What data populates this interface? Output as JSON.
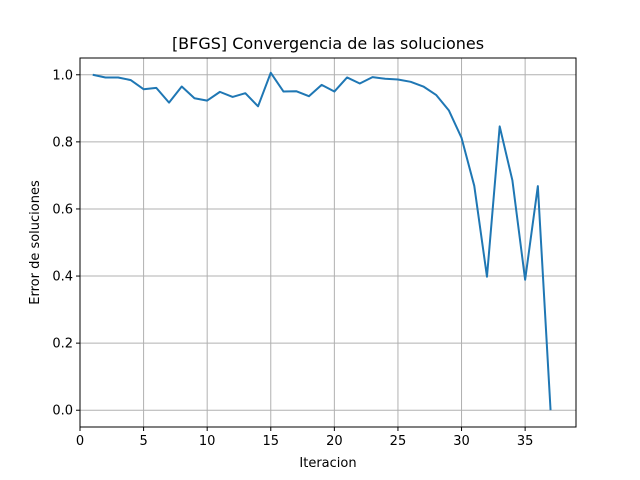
{
  "chart_data": {
    "type": "line",
    "title": "[BFGS] Convergencia de las soluciones",
    "xlabel": "Iteracion",
    "ylabel": "Error de soluciones",
    "xlim": [
      0,
      39
    ],
    "ylim": [
      -0.05,
      1.05
    ],
    "xticks": [
      0,
      5,
      10,
      15,
      20,
      25,
      30,
      35
    ],
    "xtick_labels": [
      "0",
      "5",
      "10",
      "15",
      "20",
      "25",
      "30",
      "35"
    ],
    "yticks": [
      0.0,
      0.2,
      0.4,
      0.6,
      0.8,
      1.0
    ],
    "ytick_labels": [
      "0.0",
      "0.2",
      "0.4",
      "0.6",
      "0.8",
      "1.0"
    ],
    "grid": true,
    "line_color": "#1f77b4",
    "series": [
      {
        "x": [
          1,
          2,
          3,
          4,
          5,
          6,
          7,
          8,
          9,
          10,
          11,
          12,
          13,
          14,
          15,
          16,
          17,
          18,
          19,
          20,
          21,
          22,
          23,
          24,
          25,
          26,
          27,
          28,
          29,
          30,
          31,
          32,
          33,
          34,
          35,
          36,
          37
        ],
        "values": [
          1.0,
          0.992,
          0.992,
          0.984,
          0.957,
          0.961,
          0.917,
          0.965,
          0.93,
          0.923,
          0.949,
          0.934,
          0.945,
          0.906,
          1.006,
          0.95,
          0.951,
          0.936,
          0.97,
          0.95,
          0.992,
          0.974,
          0.993,
          0.988,
          0.986,
          0.979,
          0.965,
          0.94,
          0.894,
          0.812,
          0.669,
          0.398,
          0.846,
          0.685,
          0.389,
          0.668,
          0.0
        ]
      }
    ]
  }
}
